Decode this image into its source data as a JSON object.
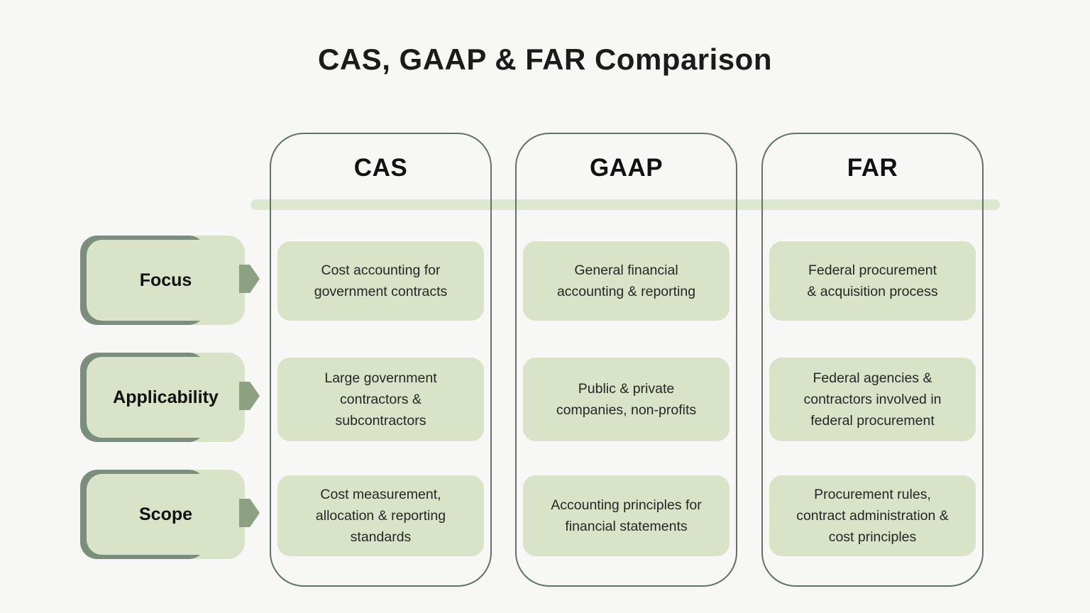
{
  "title": "CAS, GAAP & FAR Comparison",
  "rows": [
    {
      "label": "Focus"
    },
    {
      "label": "Applicability"
    },
    {
      "label": "Scope"
    }
  ],
  "columns": [
    {
      "name": "CAS",
      "cells": [
        "Cost accounting for\ngovernment contracts",
        "Large government\ncontractors &\nsubcontractors",
        "Cost measurement,\nallocation & reporting\nstandards"
      ]
    },
    {
      "name": "GAAP",
      "cells": [
        "General financial\naccounting & reporting",
        "Public & private\ncompanies, non-profits",
        "Accounting principles for\nfinancial statements"
      ]
    },
    {
      "name": "FAR",
      "cells": [
        "Federal procurement\n& acquisition process",
        "Federal agencies &\ncontractors involved in\nfederal procurement",
        "Procurement rules,\ncontract administration &\ncost principles"
      ]
    }
  ],
  "colors": {
    "background": "#f7f7f5",
    "cell_green": "#d8e3c8",
    "band_green": "#dde8ce",
    "shadow_sage": "#7b8d7d",
    "arrow_sage": "#8ba181",
    "column_border": "#5f7465",
    "text_dark": "#1b1b1b"
  }
}
